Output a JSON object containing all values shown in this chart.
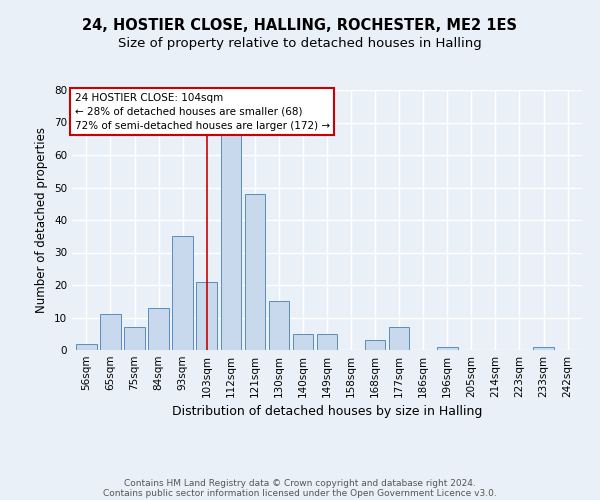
{
  "title1": "24, HOSTIER CLOSE, HALLING, ROCHESTER, ME2 1ES",
  "title2": "Size of property relative to detached houses in Halling",
  "xlabel": "Distribution of detached houses by size in Halling",
  "ylabel": "Number of detached properties",
  "categories": [
    "56sqm",
    "65sqm",
    "75sqm",
    "84sqm",
    "93sqm",
    "103sqm",
    "112sqm",
    "121sqm",
    "130sqm",
    "140sqm",
    "149sqm",
    "158sqm",
    "168sqm",
    "177sqm",
    "186sqm",
    "196sqm",
    "205sqm",
    "214sqm",
    "223sqm",
    "233sqm",
    "242sqm"
  ],
  "values": [
    2,
    11,
    7,
    13,
    35,
    21,
    68,
    48,
    15,
    5,
    5,
    0,
    3,
    7,
    0,
    1,
    0,
    0,
    0,
    1,
    0
  ],
  "bar_color": "#c9d9ed",
  "bar_edge_color": "#5b8db8",
  "vline_x": 5,
  "vline_color": "#cc0000",
  "annotation_line1": "24 HOSTIER CLOSE: 104sqm",
  "annotation_line2": "← 28% of detached houses are smaller (68)",
  "annotation_line3": "72% of semi-detached houses are larger (172) →",
  "annotation_box_color": "#ffffff",
  "annotation_box_edge": "#cc0000",
  "ylim": [
    0,
    80
  ],
  "yticks": [
    0,
    10,
    20,
    30,
    40,
    50,
    60,
    70,
    80
  ],
  "footer1": "Contains HM Land Registry data © Crown copyright and database right 2024.",
  "footer2": "Contains public sector information licensed under the Open Government Licence v3.0.",
  "bg_color": "#eaf0f8",
  "plot_bg_color": "#eaf0f8",
  "grid_color": "#ffffff",
  "title1_fontsize": 10.5,
  "title2_fontsize": 9.5,
  "xlabel_fontsize": 9,
  "ylabel_fontsize": 8.5,
  "tick_fontsize": 7.5,
  "footer_fontsize": 6.5
}
